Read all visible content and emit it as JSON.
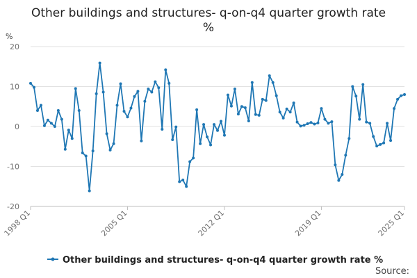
{
  "chart_data": {
    "type": "line",
    "title": "Other buildings and structures- q-on-q4 quarter growth rate %",
    "title_lines": [
      "Other buildings and structures- q-on-q4 quarter growth rate",
      "%"
    ],
    "ylabel": "%",
    "xlabel": "",
    "ylim": [
      -20,
      20
    ],
    "yticks": [
      20,
      10,
      0,
      -10,
      -20
    ],
    "xtick_labels": [
      "1998 Q1",
      "2005 Q1",
      "2012 Q1",
      "2019 Q1",
      "2025 Q1"
    ],
    "series": [
      {
        "name": "Other buildings and structures- q-on-q4 quarter growth rate %",
        "color": "#1f77b4",
        "start": "1998 Q1",
        "values": [
          10.8,
          9.8,
          4.0,
          5.3,
          0.2,
          1.6,
          0.8,
          0.0,
          4.0,
          1.8,
          -5.7,
          -0.9,
          -3.0,
          9.5,
          4.0,
          -6.6,
          -7.4,
          -16.1,
          -6.1,
          8.2,
          15.9,
          8.6,
          -1.8,
          -5.9,
          -4.3,
          5.3,
          10.7,
          3.8,
          2.4,
          4.6,
          7.5,
          8.8,
          -3.6,
          6.3,
          9.4,
          8.6,
          11.2,
          9.7,
          -0.7,
          14.2,
          10.8,
          -3.3,
          -0.1,
          -13.8,
          -13.4,
          -15.0,
          -8.8,
          -7.9,
          4.2,
          -4.3,
          0.5,
          -2.6,
          -4.6,
          0.5,
          -1.0,
          1.3,
          -2.2,
          7.9,
          5.1,
          9.4,
          3.1,
          5.0,
          4.7,
          1.4,
          11.0,
          3.0,
          2.8,
          6.8,
          6.5,
          12.7,
          11.0,
          7.7,
          3.6,
          2.1,
          4.4,
          3.6,
          5.9,
          1.1,
          0.1,
          0.3,
          0.7,
          1.0,
          0.6,
          0.9,
          4.5,
          1.8,
          0.8,
          1.2,
          -9.6,
          -13.5,
          -12.0,
          -7.2,
          -3.0,
          10.0,
          7.6,
          1.8,
          10.5,
          1.1,
          0.8,
          -2.5,
          -4.9,
          -4.5,
          -4.1,
          0.8,
          -3.5,
          4.5,
          6.8,
          7.7,
          8.0
        ]
      }
    ],
    "legend_position": "bottom",
    "grid": true
  },
  "legend_label": "Other buildings and structures- q-on-q4 quarter growth rate %",
  "source_label": "Source:"
}
